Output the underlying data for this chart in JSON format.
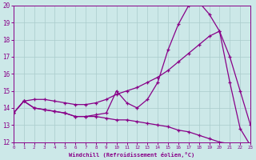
{
  "xlabel": "Windchill (Refroidissement éolien,°C)",
  "bg_color": "#cce8e8",
  "grid_color": "#aacccc",
  "line_color": "#880088",
  "xmin": 0,
  "xmax": 23,
  "ymin": 12,
  "ymax": 20,
  "xticks": [
    0,
    1,
    2,
    3,
    4,
    5,
    6,
    7,
    8,
    9,
    10,
    11,
    12,
    13,
    14,
    15,
    16,
    17,
    18,
    19,
    20,
    21,
    22,
    23
  ],
  "yticks": [
    12,
    13,
    14,
    15,
    16,
    17,
    18,
    19,
    20
  ],
  "curve1_x": [
    0,
    1,
    2,
    3,
    4,
    5,
    6,
    7,
    8,
    9,
    10,
    11,
    12,
    13,
    14,
    15,
    16,
    17,
    18,
    19,
    20,
    21,
    22,
    23
  ],
  "curve1_y": [
    13.7,
    14.4,
    14.0,
    13.9,
    13.8,
    13.7,
    13.5,
    13.5,
    13.6,
    13.7,
    15.0,
    14.3,
    14.0,
    14.5,
    15.5,
    17.4,
    18.9,
    20.0,
    20.2,
    19.5,
    18.5,
    15.5,
    12.8,
    11.8
  ],
  "curve2_x": [
    0,
    1,
    2,
    3,
    4,
    5,
    6,
    7,
    8,
    9,
    10,
    11,
    12,
    13,
    14,
    15,
    16,
    17,
    18,
    19,
    20,
    21,
    22,
    23
  ],
  "curve2_y": [
    13.7,
    14.4,
    14.5,
    14.5,
    14.4,
    14.3,
    14.2,
    14.2,
    14.3,
    14.5,
    14.8,
    15.0,
    15.2,
    15.5,
    15.8,
    16.2,
    16.7,
    17.2,
    17.7,
    18.2,
    18.5,
    17.0,
    15.0,
    13.0
  ],
  "curve3_x": [
    0,
    1,
    2,
    3,
    4,
    5,
    6,
    7,
    8,
    9,
    10,
    11,
    12,
    13,
    14,
    15,
    16,
    17,
    18,
    19,
    20,
    21,
    22,
    23
  ],
  "curve3_y": [
    13.7,
    14.4,
    14.0,
    13.9,
    13.8,
    13.7,
    13.5,
    13.5,
    13.5,
    13.4,
    13.3,
    13.3,
    13.2,
    13.1,
    13.0,
    12.9,
    12.7,
    12.6,
    12.4,
    12.2,
    12.0,
    11.9,
    11.8,
    11.7
  ]
}
